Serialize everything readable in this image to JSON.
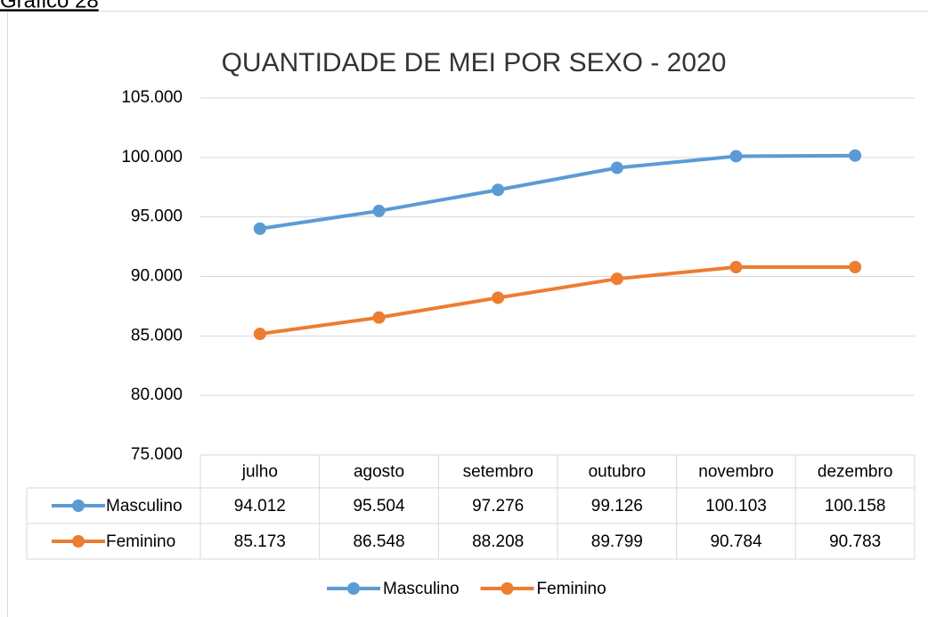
{
  "caption": "Gráfico 28",
  "chart_data": {
    "type": "line",
    "title": "QUANTIDADE DE MEI POR SEXO - 2020",
    "categories": [
      "julho",
      "agosto",
      "setembro",
      "outubro",
      "novembro",
      "dezembro"
    ],
    "series": [
      {
        "name": "Masculino",
        "color": "#5b9bd5",
        "values": [
          94012,
          95504,
          97276,
          99126,
          100103,
          100158
        ],
        "value_labels": [
          "94.012",
          "95.504",
          "97.276",
          "99.126",
          "100.103",
          "100.158"
        ]
      },
      {
        "name": "Feminino",
        "color": "#ed7d31",
        "values": [
          85173,
          86548,
          88208,
          89799,
          90784,
          90783
        ],
        "value_labels": [
          "85.173",
          "86.548",
          "88.208",
          "89.799",
          "90.784",
          "90.783"
        ]
      }
    ],
    "ylim": [
      75000,
      105000
    ],
    "yticks": [
      {
        "value": 75000,
        "label": "75.000"
      },
      {
        "value": 80000,
        "label": "80.000"
      },
      {
        "value": 85000,
        "label": "85.000"
      },
      {
        "value": 90000,
        "label": "90.000"
      },
      {
        "value": 95000,
        "label": "95.000"
      },
      {
        "value": 100000,
        "label": "100.000"
      },
      {
        "value": 105000,
        "label": "105.000"
      }
    ],
    "grid": true,
    "legend": "bottom",
    "data_table": true
  }
}
